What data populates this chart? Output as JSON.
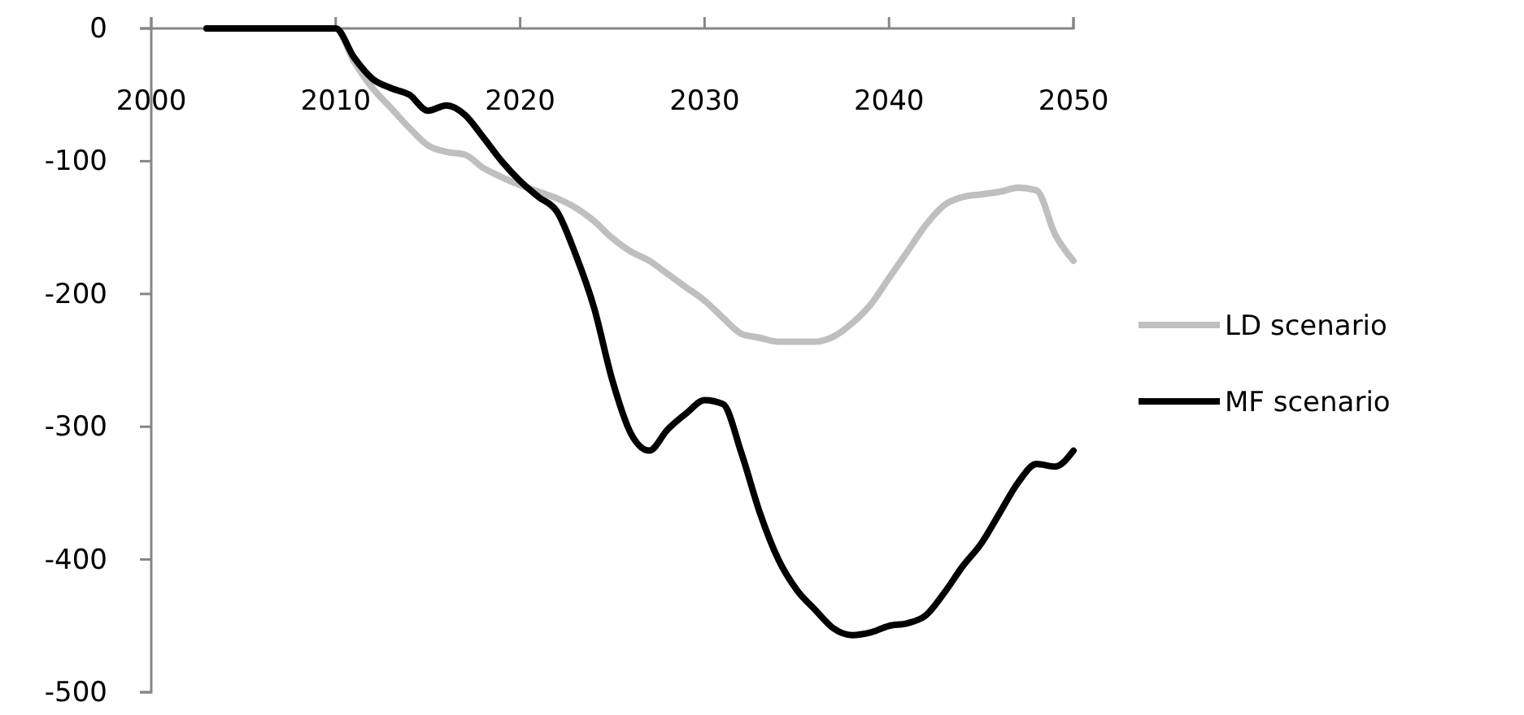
{
  "chart_data": {
    "type": "line",
    "x": [
      2003,
      2004,
      2005,
      2006,
      2007,
      2008,
      2009,
      2010,
      2011,
      2012,
      2013,
      2014,
      2015,
      2016,
      2017,
      2018,
      2019,
      2020,
      2021,
      2022,
      2023,
      2024,
      2025,
      2026,
      2027,
      2028,
      2029,
      2030,
      2031,
      2032,
      2033,
      2034,
      2035,
      2036,
      2037,
      2038,
      2039,
      2040,
      2041,
      2042,
      2043,
      2044,
      2045,
      2046,
      2047,
      2048,
      2049,
      2050
    ],
    "series": [
      {
        "name": "LD scenario",
        "color": "#bfbfbf",
        "values": [
          0,
          0,
          0,
          0,
          0,
          0,
          0,
          0,
          -25,
          -45,
          -60,
          -75,
          -88,
          -93,
          -95,
          -105,
          -112,
          -118,
          -123,
          -128,
          -135,
          -145,
          -158,
          -168,
          -175,
          -185,
          -195,
          -205,
          -218,
          -230,
          -233,
          -236,
          -236,
          -236,
          -232,
          -222,
          -208,
          -188,
          -168,
          -148,
          -133,
          -127,
          -125,
          -123,
          -120,
          -122,
          -155,
          -175
        ]
      },
      {
        "name": "MF scenario",
        "color": "#000000",
        "values": [
          0,
          0,
          0,
          0,
          0,
          0,
          0,
          0,
          -22,
          -38,
          -45,
          -50,
          -62,
          -58,
          -65,
          -82,
          -100,
          -115,
          -127,
          -138,
          -170,
          -210,
          -265,
          -305,
          -318,
          -302,
          -290,
          -280,
          -283,
          -320,
          -365,
          -400,
          -423,
          -438,
          -452,
          -457,
          -455,
          -450,
          -448,
          -442,
          -425,
          -405,
          -388,
          -365,
          -342,
          -328,
          -330,
          -318
        ]
      }
    ],
    "xlim": [
      2000,
      2050
    ],
    "xticks": [
      2000,
      2010,
      2020,
      2030,
      2040,
      2050
    ],
    "ylim": [
      -500,
      0
    ],
    "yticks": [
      0,
      -100,
      -200,
      -300,
      -400,
      -500
    ],
    "grid": false,
    "legend": "right",
    "marker": "none",
    "line_style": "solid"
  }
}
